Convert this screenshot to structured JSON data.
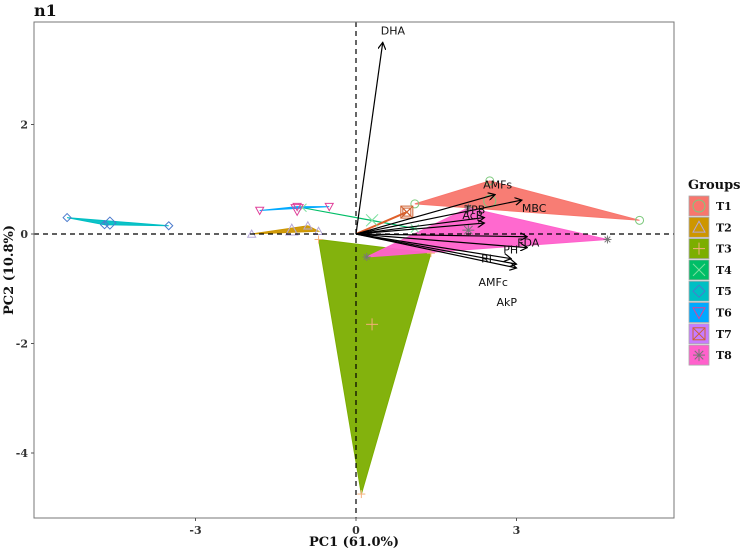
{
  "chart_data": {
    "type": "scatter",
    "subtype": "PCA biplot with convex hulls",
    "title": "n1",
    "xlabel": "PC1 (61.0%)",
    "ylabel": "PC2 (10.8%)",
    "xlim": [
      -5.9,
      6.0
    ],
    "ylim": [
      -5.2,
      3.8
    ],
    "xticks": [
      -3,
      0,
      3
    ],
    "yticks": [
      2,
      0,
      -2,
      -4
    ],
    "grid": false,
    "reference_lines": {
      "x": 0,
      "y": 0,
      "style": "dashed"
    },
    "legend": {
      "title": "Groups",
      "position": "right",
      "entries": [
        {
          "label": "T1",
          "color": "#F8766D",
          "shape": "circle"
        },
        {
          "label": "T2",
          "color": "#CD9600",
          "shape": "triangle"
        },
        {
          "label": "T3",
          "color": "#7CAE00",
          "shape": "plus"
        },
        {
          "label": "T4",
          "color": "#00BE67",
          "shape": "cross"
        },
        {
          "label": "T5",
          "color": "#00BFC4",
          "shape": "diamond"
        },
        {
          "label": "T6",
          "color": "#00A9FF",
          "shape": "triangle-down"
        },
        {
          "label": "T7",
          "color": "#C77CFF",
          "shape": "square-cross"
        },
        {
          "label": "T8",
          "color": "#FF61CC",
          "shape": "asterisk"
        }
      ]
    },
    "groups": [
      {
        "name": "T1",
        "color": "#F8766D",
        "points": [
          [
            1.1,
            0.55
          ],
          [
            2.5,
            0.97
          ],
          [
            5.3,
            0.25
          ]
        ],
        "centroid": [
          2.5,
          0.6
        ]
      },
      {
        "name": "T2",
        "color": "#CD9600",
        "points": [
          [
            -1.95,
            0.0
          ],
          [
            -0.9,
            0.15
          ],
          [
            -0.7,
            0.05
          ]
        ],
        "centroid": [
          -1.2,
          0.07
        ]
      },
      {
        "name": "T3",
        "color": "#7CAE00",
        "points": [
          [
            -0.7,
            -0.1
          ],
          [
            0.1,
            -4.75
          ],
          [
            1.4,
            -0.35
          ]
        ],
        "centroid": [
          0.3,
          -1.65
        ]
      },
      {
        "name": "T4",
        "color": "#00BE67",
        "points": [
          [
            -1.0,
            0.48
          ],
          [
            0.3,
            0.25
          ],
          [
            1.1,
            0.1
          ]
        ],
        "centroid": [
          0.3,
          0.25
        ]
      },
      {
        "name": "T5",
        "color": "#00BFC4",
        "points": [
          [
            -5.4,
            0.3
          ],
          [
            -4.7,
            0.17
          ],
          [
            -3.5,
            0.15
          ]
        ],
        "centroid": [
          -4.6,
          0.2
        ]
      },
      {
        "name": "T6",
        "color": "#00A9FF",
        "points": [
          [
            -1.8,
            0.43
          ],
          [
            -1.1,
            0.5
          ],
          [
            -0.5,
            0.5
          ]
        ],
        "centroid": [
          -1.1,
          0.45
        ]
      },
      {
        "name": "T7",
        "color": "#C77CFF",
        "points": [
          [
            0.95,
            0.4
          ]
        ],
        "centroid": [
          0.95,
          0.4
        ]
      },
      {
        "name": "T8",
        "color": "#FF61CC",
        "points": [
          [
            0.2,
            -0.42
          ],
          [
            2.1,
            0.48
          ],
          [
            4.7,
            -0.1
          ]
        ],
        "centroid": [
          2.1,
          0.07
        ]
      }
    ],
    "loadings": [
      {
        "label": "DHA",
        "x": 0.5,
        "y": 3.5
      },
      {
        "label": "AMFs",
        "x": 2.6,
        "y": 0.72
      },
      {
        "label": "MBC",
        "x": 3.1,
        "y": 0.62
      },
      {
        "label": "TPB",
        "x": 2.4,
        "y": 0.3
      },
      {
        "label": "AcP",
        "x": 2.4,
        "y": 0.2
      },
      {
        "label": "FDA",
        "x": 3.2,
        "y": -0.05
      },
      {
        "label": "PH",
        "x": 3.2,
        "y": -0.25
      },
      {
        "label": "RI",
        "x": 2.9,
        "y": -0.45
      },
      {
        "label": "AMFc",
        "x": 3.0,
        "y": -0.55
      },
      {
        "label": "AkP",
        "x": 3.0,
        "y": -0.62
      }
    ]
  }
}
